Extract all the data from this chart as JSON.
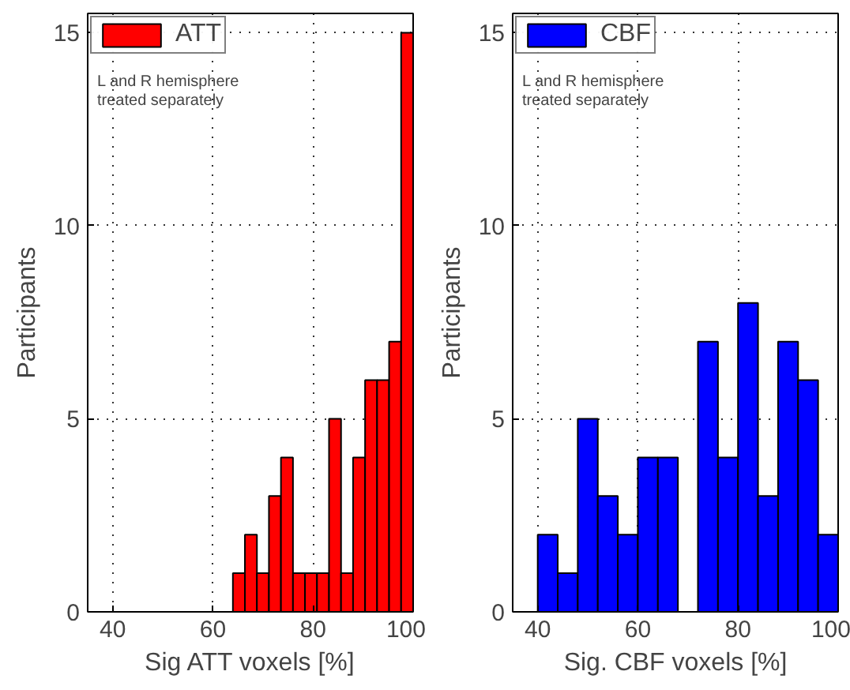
{
  "chart_data": [
    {
      "type": "histogram",
      "xlabel": "Sig ATT voxels [%]",
      "ylabel": "Participants",
      "bins": [
        64,
        66.4,
        68.8,
        71.2,
        73.6,
        76,
        78.4,
        80.8,
        83.2,
        85.6,
        88,
        90.4,
        92.8,
        95.2,
        97.6,
        100
      ],
      "series": [
        {
          "name": "ATT",
          "color": "#ff0000",
          "values": [
            1,
            2,
            1,
            3,
            4,
            1,
            1,
            1,
            5,
            1,
            4,
            6,
            6,
            7,
            15
          ]
        }
      ],
      "annotations": [
        "L and R hemisphere treated separately"
      ],
      "xlim": [
        35,
        100
      ],
      "ylim": [
        0,
        15.5
      ],
      "xticks": [
        40,
        60,
        80,
        100
      ],
      "yticks": [
        0,
        5,
        10,
        15
      ],
      "grid": true,
      "legend": "top left"
    },
    {
      "type": "histogram",
      "xlabel": "Sig. CBF voxels [%]",
      "ylabel": "Participants",
      "bins": [
        40,
        44,
        48,
        52,
        56,
        60,
        64,
        68,
        72,
        76,
        80,
        84,
        88,
        92,
        96,
        100
      ],
      "series": [
        {
          "name": "CBF",
          "color": "#0000ff",
          "values": [
            2,
            1,
            5,
            3,
            2,
            4,
            4,
            0,
            7,
            4,
            8,
            3,
            7,
            6,
            2
          ]
        }
      ],
      "annotations": [
        "L and R hemisphere treated separately"
      ],
      "xlim": [
        35,
        100
      ],
      "ylim": [
        0,
        15.5
      ],
      "xticks": [
        40,
        60,
        80,
        100
      ],
      "yticks": [
        0,
        5,
        10,
        15
      ],
      "grid": true,
      "legend": "top left"
    }
  ]
}
